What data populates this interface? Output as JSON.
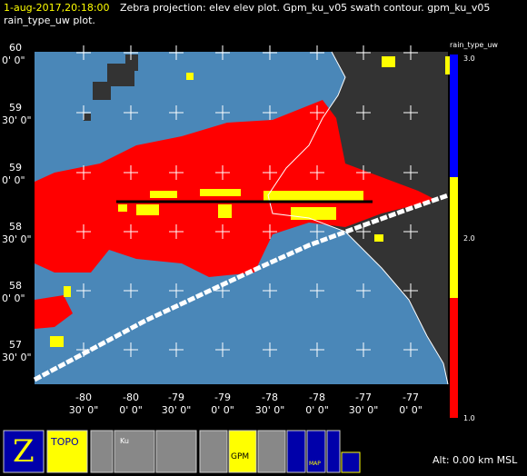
{
  "header": {
    "timestamp": "1-aug-2017,20:18:00",
    "line1": "Zebra projection: elev elev  plot.  Gpm_ku_v05 swath contour.  gpm_ku_v05",
    "line2": "rain_type_uw  plot."
  },
  "map": {
    "y_labels": [
      [
        "60",
        "0' 0\""
      ],
      [
        "59",
        "30' 0\""
      ],
      [
        "59",
        "0' 0\""
      ],
      [
        "58",
        "30' 0\""
      ],
      [
        "58",
        "0' 0\""
      ],
      [
        "57",
        "30' 0\""
      ]
    ],
    "x_labels": [
      [
        "-80",
        "30' 0\""
      ],
      [
        "-80",
        "0' 0\""
      ],
      [
        "-79",
        "30' 0\""
      ],
      [
        "-79",
        "0' 0\""
      ],
      [
        "-78",
        "30' 0\""
      ],
      [
        "-78",
        "0' 0\""
      ],
      [
        "-77",
        "30' 0\""
      ],
      [
        "-77",
        "0' 0\""
      ]
    ]
  },
  "colorbar": {
    "title": "rain_type_uw",
    "ticks": [
      "3.0",
      "2.0",
      "1.0"
    ]
  },
  "toolbar": {
    "topo": "TOPO",
    "ku": "Ku",
    "gpm": "GPM",
    "map": "MAP"
  },
  "footer": {
    "altitude": "Alt: 0.00 km MSL"
  }
}
